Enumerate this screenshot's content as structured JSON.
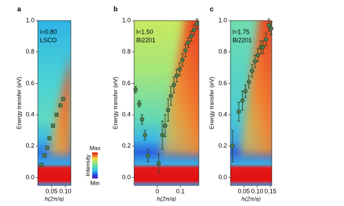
{
  "chart_data": [
    {
      "type": "scatter",
      "panel": "a",
      "annotation": "l=0.80",
      "material": "LSCO",
      "x_label": "h(2π/a)",
      "y_label": "Energy transfer (eV)",
      "xlim": [
        0,
        0.12
      ],
      "xticks": [
        0.05,
        {
          "value": 0.1,
          "label": "0.10"
        }
      ],
      "ylim": [
        -0.05,
        1.0
      ],
      "yticks": [
        {
          "value": 0,
          "label": "0.0"
        },
        0.2,
        0.4,
        0.6,
        0.8,
        {
          "value": 1,
          "label": "1.0"
        }
      ],
      "marker": "square",
      "heatmap": "a",
      "series": [
        {
          "color": "#4f7d4f",
          "x": [
            0.013,
            0.024,
            0.034,
            0.042,
            0.055,
            0.068,
            0.082,
            0.092
          ],
          "values": [
            0.08,
            0.14,
            0.19,
            0.25,
            0.33,
            0.4,
            0.46,
            0.5
          ]
        }
      ]
    },
    {
      "type": "scatter",
      "panel": "b",
      "annotation": "l=1.50",
      "material": "Bi2201",
      "x_label": "h(2π/a)",
      "y_label": "Energy transfer (eV)",
      "xlim": [
        -0.1,
        0.18
      ],
      "xticks": [
        0,
        0.1
      ],
      "ylim": [
        -0.05,
        1.0
      ],
      "yticks": [
        {
          "value": 0,
          "label": "0.0"
        },
        0.2,
        0.4,
        0.6,
        0.8,
        {
          "value": 1,
          "label": "1.0"
        }
      ],
      "marker": "circle",
      "heatmap": "b",
      "series": [
        {
          "color": "#4f7d4f",
          "x": [
            -0.094,
            -0.078,
            -0.066,
            -0.053,
            -0.041,
            0.006,
            0.022,
            0.034,
            0.047,
            0.059,
            0.072,
            0.084,
            0.097,
            0.109,
            0.122,
            0.134,
            0.147,
            0.159,
            0.172
          ],
          "values": [
            0.56,
            0.47,
            0.37,
            0.27,
            0.14,
            0.09,
            0.27,
            0.33,
            0.43,
            0.52,
            0.59,
            0.65,
            0.69,
            0.75,
            0.81,
            0.86,
            0.9,
            0.94,
            0.98
          ],
          "errors": [
            0.02,
            0.02,
            0.03,
            0.03,
            0.04,
            0.06,
            0.09,
            0.07,
            0.07,
            0.06,
            0.05,
            0.04,
            0.04,
            0.04,
            0.04,
            0.03,
            0.03,
            0.03,
            0.03
          ]
        }
      ]
    },
    {
      "type": "scatter",
      "panel": "c",
      "annotation": "l=1.75",
      "material": "Bi2201",
      "x_label": "h(2π/a)",
      "y_label": "Energy transfer (eV)",
      "xlim": [
        0,
        0.155
      ],
      "xticks": [
        0.05,
        {
          "value": 0.1,
          "label": "0.10"
        },
        0.15
      ],
      "ylim": [
        -0.05,
        1.0
      ],
      "yticks": [
        {
          "value": 0,
          "label": "0.0"
        },
        0.2,
        0.4,
        0.6,
        0.8,
        {
          "value": 1,
          "label": "1.0"
        }
      ],
      "marker": "circle",
      "heatmap": "c",
      "series": [
        {
          "color": "#4f7d4f",
          "x": [
            0.008,
            0.031,
            0.045,
            0.056,
            0.069,
            0.081,
            0.092,
            0.103,
            0.114,
            0.122,
            0.133,
            0.144,
            0.153
          ],
          "values": [
            0.2,
            0.42,
            0.49,
            0.55,
            0.61,
            0.68,
            0.74,
            0.78,
            0.83,
            0.83,
            0.88,
            0.97,
            0.95
          ],
          "errors": [
            0.1,
            0.06,
            0.06,
            0.04,
            0.04,
            0.04,
            0.04,
            0.04,
            0.04,
            0.04,
            0.04,
            0.04,
            0.04
          ]
        }
      ]
    }
  ],
  "colorbar": {
    "label": "Intensity",
    "max_label": "Max",
    "min_label": "Min"
  }
}
